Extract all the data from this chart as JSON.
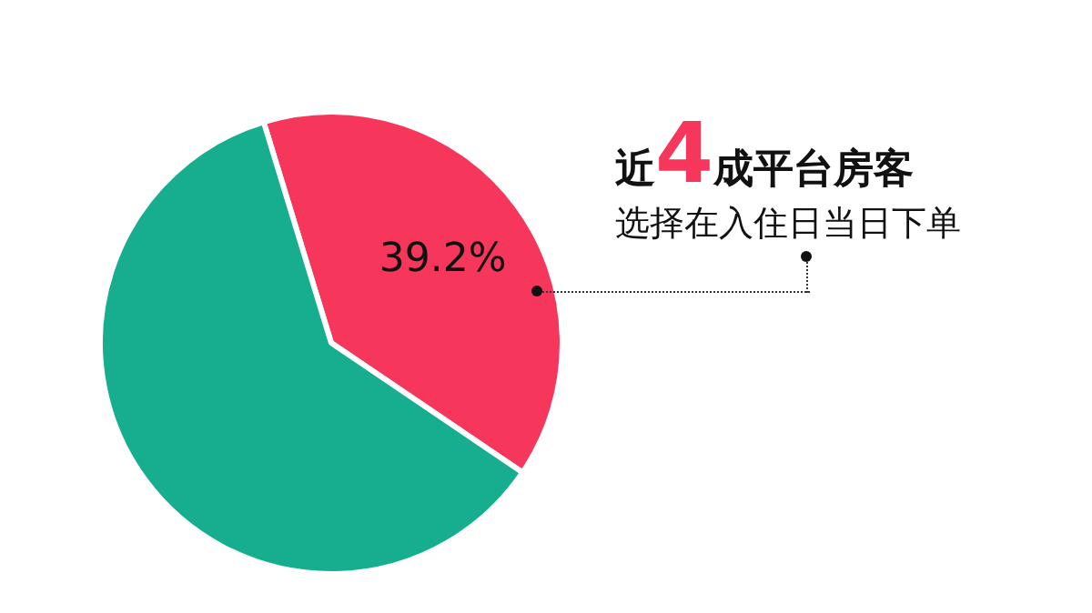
{
  "chart_data": {
    "type": "pie",
    "title": "近4成平台房客",
    "subtitle": "选择在入住日当日下单",
    "categories": [
      null,
      null
    ],
    "values": [
      39.2,
      60.8
    ],
    "colors": [
      "#f7365c",
      "#16ae8e"
    ],
    "value_labels": [
      "39.2%",
      null
    ]
  }
}
